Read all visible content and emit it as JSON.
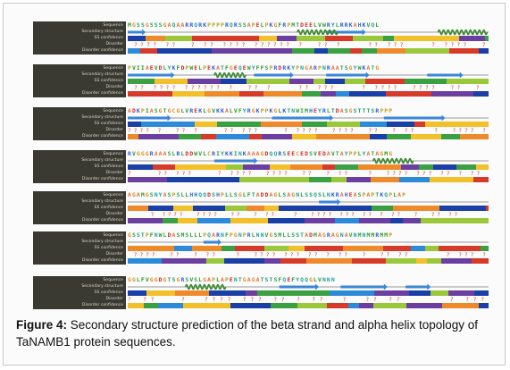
{
  "figure": {
    "row_labels": [
      "Sequence",
      "Secondary structure",
      "SS confidence",
      "Disorder",
      "Disorder confidence"
    ],
    "blocks": [
      {
        "sequence": "MGSSGSSSGAQAARRQRKPPPPRQRSSAPELPKGFRPMTDEELVWRYLRRKAHKVQL",
        "helix": [
          [
            0.47,
            0.58
          ],
          [
            0.86,
            0.99
          ]
        ],
        "strand": [
          [
            0.0,
            0.05
          ],
          [
            0.55,
            0.66
          ]
        ]
      },
      {
        "sequence": "PVIIAEVDLYKFDPWELPEKATFGEQEWYFFSPRDRKYPNGARPNRAATSGYWKATG",
        "helix": [
          [
            0.24,
            0.32
          ]
        ],
        "strand": [
          [
            0.0,
            0.13
          ],
          [
            0.35,
            0.46
          ],
          [
            0.55,
            0.67
          ],
          [
            0.83,
            0.93
          ]
        ]
      },
      {
        "sequence": "ADKPIASGTGCGLVREKLGVKKALVFYRGKPPKGLKTNWIMHEYRLTDASGSTTTSRPPP",
        "helix": [],
        "strand": [
          [
            0.0,
            0.12
          ],
          [
            0.4,
            0.57
          ],
          [
            0.71,
            0.88
          ]
        ]
      },
      {
        "sequence": "RVGGGRAAASLRLDDWVLCRIYKKINKAAAGDQQRSEECEDSVEDAVTAYPPLYATAGMG",
        "helix": [
          [
            0.68,
            0.79
          ]
        ],
        "strand": [
          [
            0.24,
            0.36
          ]
        ]
      },
      {
        "sequence": "AGAMGSNYASPSLLHHQQDSHPLLSGLFTADDAGLSAGNLSSQSLNKRAHEASPAPTKQPLAP",
        "helix": [],
        "strand": [
          [
            0.53,
            0.59
          ]
        ]
      },
      {
        "sequence": "GSSTPFNWLDASMSLLLPQARNFPGNPRLNNVGSMLLSSTADMAGRAGNAVNMNMMRMMP",
        "helix": [],
        "strand": [
          [
            0.21,
            0.26
          ]
        ]
      },
      {
        "sequence": "GGLFVGGDGTSGRSVSLGAPLAPENTGAGATSTSFQEFYQQGLVNNN",
        "helix": [
          [
            0.16,
            0.26
          ]
        ],
        "strand": [
          [
            0.42,
            0.53
          ],
          [
            0.59,
            0.72
          ],
          [
            0.77,
            0.84
          ]
        ]
      }
    ]
  },
  "caption": {
    "label": "Figure 4:",
    "text": " Secondary structure prediction of the beta strand and alpha helix topology of TaNAMB1 protein sequences."
  },
  "colors": {
    "helix": "#3a8a30",
    "strand": "#3a87d8",
    "coil": "#9a9a9a",
    "disorder_dot": "#d03b2b",
    "label_panel": "#3a3a33",
    "confidence": [
      "#d63b2a",
      "#ef8a2a",
      "#f2c02a",
      "#9bc83a",
      "#3aa041",
      "#2c8ad8",
      "#1a3fa6",
      "#6b3fa0"
    ]
  }
}
